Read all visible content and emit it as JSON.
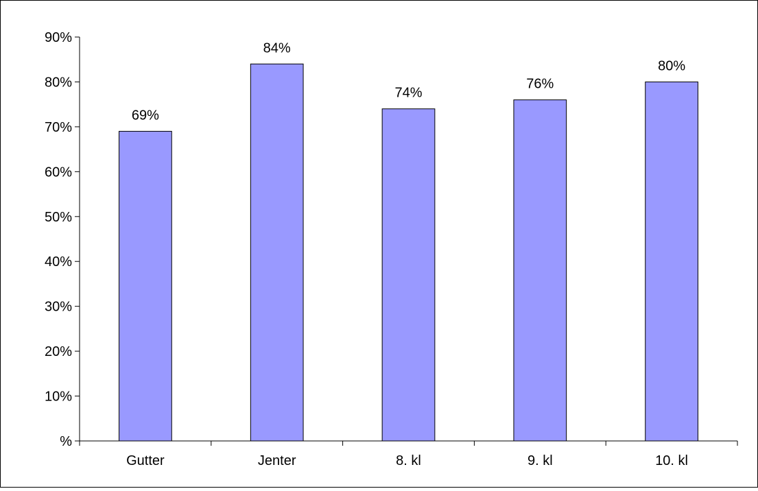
{
  "chart_data": {
    "type": "bar",
    "title": "",
    "xlabel": "",
    "ylabel": "",
    "categories": [
      "Gutter",
      "Jenter",
      "8. kl",
      "9. kl",
      "10. kl"
    ],
    "values": [
      69,
      84,
      74,
      76,
      80
    ],
    "value_labels": [
      "69%",
      "84%",
      "74%",
      "76%",
      "80%"
    ],
    "ylim": [
      0,
      90
    ],
    "yticks": [
      0,
      10,
      20,
      30,
      40,
      50,
      60,
      70,
      80,
      90
    ],
    "ytick_labels": [
      "%",
      "10%",
      "20%",
      "30%",
      "40%",
      "50%",
      "60%",
      "70%",
      "80%",
      "90%"
    ],
    "grid": false,
    "legend": "none",
    "bar_color": "#9999ff",
    "bar_edge_color": "#000000",
    "frame_color": "#000000"
  }
}
